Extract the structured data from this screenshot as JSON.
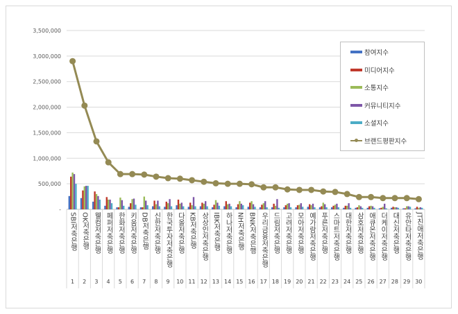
{
  "chart_data": {
    "type": "bar",
    "title": "",
    "ylim": [
      0,
      3500000
    ],
    "yticks": [
      "-",
      "500,000",
      "1,000,000",
      "1,500,000",
      "2,000,000",
      "2,500,000",
      "3,000,000",
      "3,500,000"
    ],
    "ytick_values": [
      0,
      500000,
      1000000,
      1500000,
      2000000,
      2500000,
      3000000,
      3500000
    ],
    "grid": true,
    "legend_position": "top-right",
    "categories": [
      "SBI저축은행",
      "OK저축은행",
      "웰컴저축은행",
      "페퍼저축은행",
      "한화저축은행",
      "키움저축은행",
      "DB저축은행",
      "신한저축은행",
      "한국투자저축은행",
      "다올저축은행",
      "KB저축은행",
      "상상인저축은행",
      "IBK저축은행",
      "하나저축은행",
      "NH저축은행",
      "BNK저축은행",
      "우리금융저축은행",
      "드림저축은행",
      "고려저축은행",
      "모아저축은행",
      "예가람저축은행",
      "푸른저축은행",
      "스마트저축은행",
      "대한저축은행",
      "삼호저축은행",
      "애큐온저축은행",
      "더케이저축은행",
      "대신저축은행",
      "유안타저축은행",
      "JT친애저축은행"
    ],
    "ranks": [
      "1",
      "2",
      "3",
      "4",
      "5",
      "6",
      "7",
      "8",
      "9",
      "10",
      "11",
      "12",
      "13",
      "14",
      "15",
      "16",
      "17",
      "18",
      "19",
      "20",
      "21",
      "22",
      "23",
      "24",
      "25",
      "26",
      "27",
      "28",
      "29",
      "30"
    ],
    "series": [
      {
        "name": "참여지수",
        "color": "#4472c4",
        "values": [
          260000,
          220000,
          150000,
          70000,
          40000,
          50000,
          40000,
          60000,
          50000,
          80000,
          50000,
          60000,
          40000,
          60000,
          40000,
          50000,
          40000,
          40000,
          40000,
          40000,
          50000,
          40000,
          40000,
          30000,
          30000,
          30000,
          20000,
          30000,
          20000,
          20000
        ]
      },
      {
        "name": "미디어지수",
        "color": "#c0392b",
        "values": [
          640000,
          370000,
          350000,
          240000,
          40000,
          120000,
          40000,
          170000,
          150000,
          190000,
          130000,
          130000,
          90000,
          160000,
          100000,
          130000,
          90000,
          110000,
          80000,
          80000,
          100000,
          60000,
          70000,
          70000,
          40000,
          60000,
          30000,
          50000,
          20000,
          50000
        ]
      },
      {
        "name": "소통지수",
        "color": "#9bbb59",
        "values": [
          720000,
          450000,
          300000,
          190000,
          230000,
          200000,
          250000,
          100000,
          120000,
          110000,
          80000,
          110000,
          180000,
          100000,
          160000,
          160000,
          120000,
          70000,
          110000,
          90000,
          80000,
          130000,
          90000,
          70000,
          80000,
          70000,
          50000,
          40000,
          60000,
          30000
        ]
      },
      {
        "name": "커뮤니티지수",
        "color": "#7e57a8",
        "values": [
          690000,
          460000,
          260000,
          190000,
          180000,
          210000,
          170000,
          170000,
          200000,
          130000,
          240000,
          160000,
          130000,
          110000,
          110000,
          100000,
          160000,
          200000,
          120000,
          120000,
          110000,
          100000,
          110000,
          120000,
          60000,
          60000,
          110000,
          40000,
          60000,
          40000
        ]
      },
      {
        "name": "소셜지수",
        "color": "#4bacc6",
        "values": [
          500000,
          460000,
          190000,
          120000,
          70000,
          90000,
          80000,
          60000,
          60000,
          60000,
          60000,
          60000,
          70000,
          60000,
          80000,
          50000,
          40000,
          30000,
          40000,
          50000,
          40000,
          40000,
          40000,
          30000,
          30000,
          30000,
          20000,
          30000,
          50000,
          30000
        ]
      }
    ],
    "line": {
      "name": "브랜드평판지수",
      "color": "#948a54",
      "values": [
        2900000,
        2030000,
        1330000,
        920000,
        690000,
        690000,
        680000,
        640000,
        610000,
        600000,
        570000,
        540000,
        510000,
        500000,
        500000,
        490000,
        430000,
        430000,
        390000,
        380000,
        380000,
        350000,
        340000,
        300000,
        240000,
        240000,
        220000,
        220000,
        220000,
        200000
      ]
    }
  }
}
